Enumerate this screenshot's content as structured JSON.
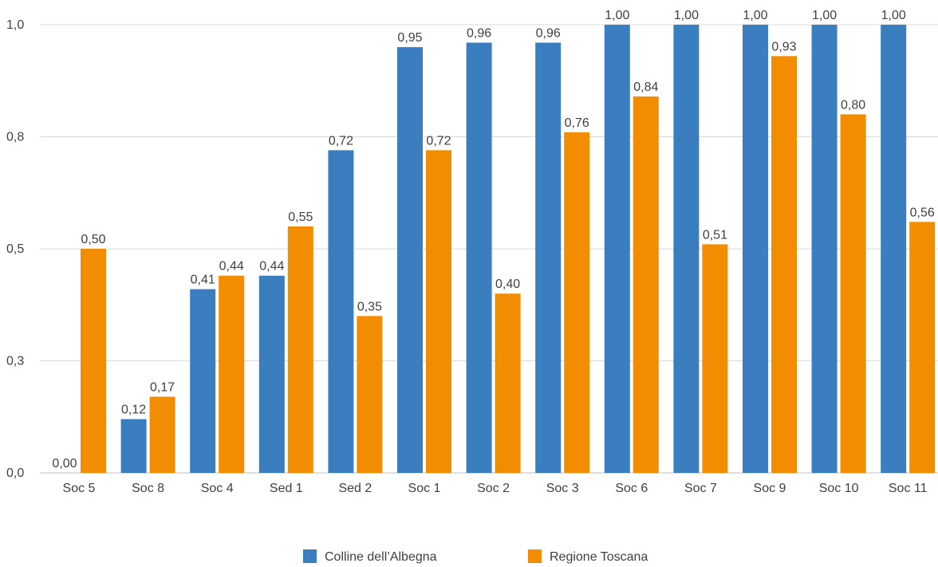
{
  "chart_data": {
    "type": "bar",
    "categories": [
      "Soc 5",
      "Soc 8",
      "Soc 4",
      "Sed 1",
      "Sed 2",
      "Soc 1",
      "Soc 2",
      "Soc 3",
      "Soc 6",
      "Soc 7",
      "Soc 9",
      "Soc 10",
      "Soc 11"
    ],
    "series": [
      {
        "name": "Colline dell’Albegna",
        "color": "#3a7ebf",
        "values": [
          0.0,
          0.12,
          0.41,
          0.44,
          0.72,
          0.95,
          0.96,
          0.96,
          1.0,
          1.0,
          1.0,
          1.0,
          1.0
        ],
        "labels": [
          "0,00",
          "0,12",
          "0,41",
          "0,44",
          "0,72",
          "0,95",
          "0,96",
          "0,96",
          "1,00",
          "1,00",
          "1,00",
          "1,00",
          "1,00"
        ]
      },
      {
        "name": "Regione Toscana",
        "color": "#f28c00",
        "values": [
          0.5,
          0.17,
          0.44,
          0.55,
          0.35,
          0.72,
          0.4,
          0.76,
          0.84,
          0.51,
          0.93,
          0.8,
          0.56
        ],
        "labels": [
          "0,50",
          "0,17",
          "0,44",
          "0,55",
          "0,35",
          "0,72",
          "0,40",
          "0,76",
          "0,84",
          "0,51",
          "0,93",
          "0,80",
          "0,56"
        ]
      }
    ],
    "yticks": [
      0.0,
      0.25,
      0.5,
      0.75,
      1.0
    ],
    "ytick_labels": [
      "0,0",
      "0,3",
      "0,5",
      "0,8",
      "1,0"
    ],
    "ylim": [
      0,
      1
    ],
    "grid": true,
    "legend_position": "bottom-center",
    "title": "",
    "xlabel": "",
    "ylabel": ""
  }
}
